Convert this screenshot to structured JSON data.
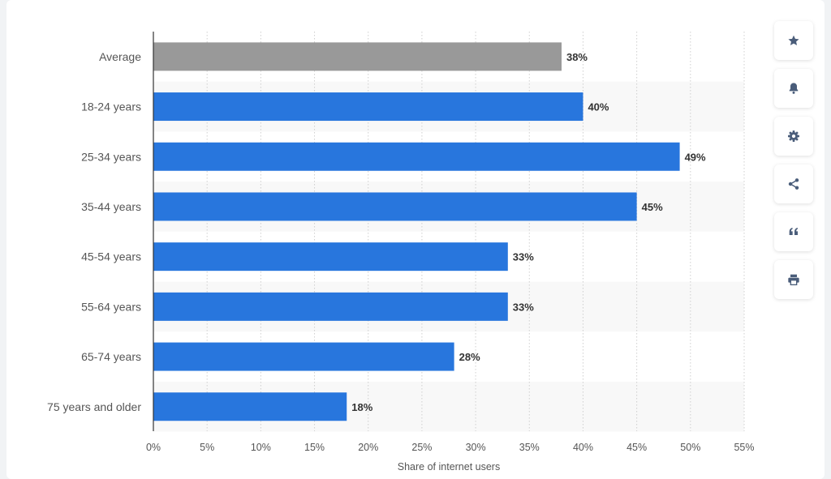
{
  "chart_data": {
    "type": "bar",
    "orientation": "horizontal",
    "categories": [
      "Average",
      "18-24 years",
      "25-34 years",
      "35-44 years",
      "45-54 years",
      "55-64 years",
      "65-74 years",
      "75 years and older"
    ],
    "values": [
      38,
      40,
      49,
      45,
      33,
      33,
      28,
      18
    ],
    "value_labels": [
      "38%",
      "40%",
      "49%",
      "45%",
      "33%",
      "33%",
      "28%",
      "18%"
    ],
    "xlabel": "Share of internet users",
    "ylabel": "",
    "xlim": [
      0,
      55
    ],
    "xticks": [
      0,
      5,
      10,
      15,
      20,
      25,
      30,
      35,
      40,
      45,
      50,
      55
    ],
    "xtick_labels": [
      "0%",
      "5%",
      "10%",
      "15%",
      "20%",
      "25%",
      "30%",
      "35%",
      "40%",
      "45%",
      "50%",
      "55%"
    ],
    "grid": true,
    "colors": {
      "average": "#999999",
      "bars": "#2876dd",
      "band": "#f8f8f8",
      "grid": "#cfcfcf",
      "axis": "#333333"
    }
  },
  "toolbar": {
    "buttons": [
      {
        "name": "star",
        "icon": "star-icon"
      },
      {
        "name": "notification",
        "icon": "bell-icon"
      },
      {
        "name": "settings",
        "icon": "gear-icon"
      },
      {
        "name": "share",
        "icon": "share-icon"
      },
      {
        "name": "cite",
        "icon": "quote-icon"
      },
      {
        "name": "print",
        "icon": "print-icon"
      }
    ],
    "icon_color": "#4a5d7a"
  }
}
